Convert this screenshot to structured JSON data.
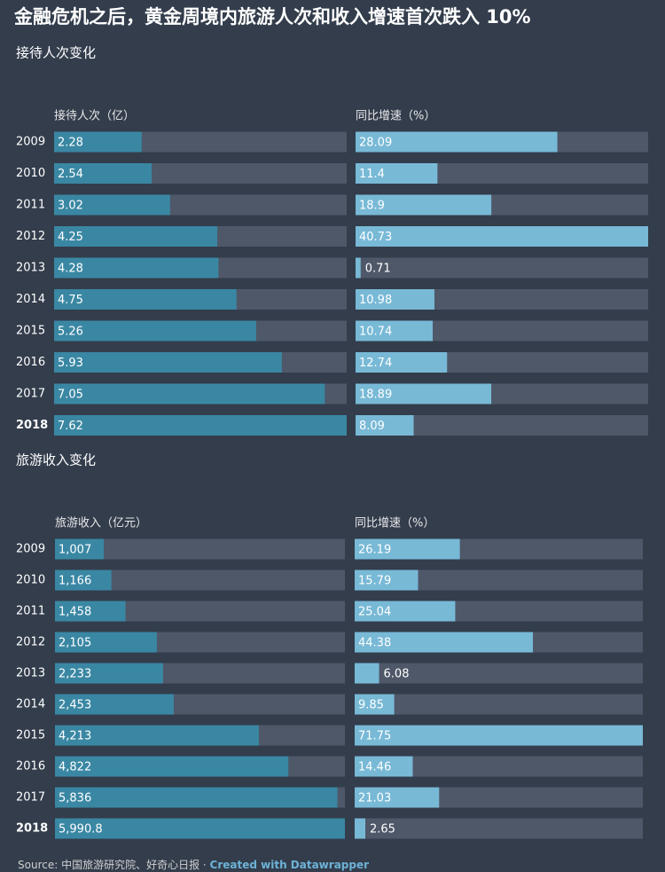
{
  "title": "金融危机之后，黄金周境内旅游人次和收入增速首次跌入 10%",
  "source": "Source: 中国旅游研究院、好奇心日报 · ",
  "credit": "Created with Datawrapper",
  "chart_data": [
    {
      "type": "bar",
      "subtitle": "接待人次变化",
      "categories": [
        "2009",
        "2010",
        "2011",
        "2012",
        "2013",
        "2014",
        "2015",
        "2016",
        "2017",
        "2018"
      ],
      "series": [
        {
          "name": "接待人次（亿）",
          "color": "#3a87a3",
          "xlim": [
            0,
            7.62
          ],
          "values": [
            2.28,
            2.54,
            3.02,
            4.25,
            4.28,
            4.75,
            5.26,
            5.93,
            7.05,
            7.62
          ]
        },
        {
          "name": "同比增速（%）",
          "color": "#78b9d6",
          "xlim": [
            0,
            40.73
          ],
          "values": [
            28.09,
            11.4,
            18.9,
            40.73,
            0.71,
            10.98,
            10.74,
            12.74,
            18.89,
            8.09
          ]
        }
      ]
    },
    {
      "type": "bar",
      "subtitle": "旅游收入变化",
      "categories": [
        "2009",
        "2010",
        "2011",
        "2012",
        "2013",
        "2014",
        "2015",
        "2016",
        "2017",
        "2018"
      ],
      "series": [
        {
          "name": "旅游收入（亿元）",
          "color": "#3a87a3",
          "xlim": [
            0,
            5990.8
          ],
          "values": [
            1007,
            1166,
            1458,
            2105,
            2233,
            2453,
            4213,
            4822,
            5836,
            5990.8
          ],
          "value_labels": [
            "1,007",
            "1,166",
            "1,458",
            "2,105",
            "2,233",
            "2,453",
            "4,213",
            "4,822",
            "5,836",
            "5,990.8"
          ]
        },
        {
          "name": "同比增速（%）",
          "color": "#78b9d6",
          "xlim": [
            0,
            71.75
          ],
          "values": [
            26.19,
            15.79,
            25.04,
            44.38,
            6.08,
            9.85,
            71.75,
            14.46,
            21.03,
            2.65
          ]
        }
      ]
    }
  ]
}
